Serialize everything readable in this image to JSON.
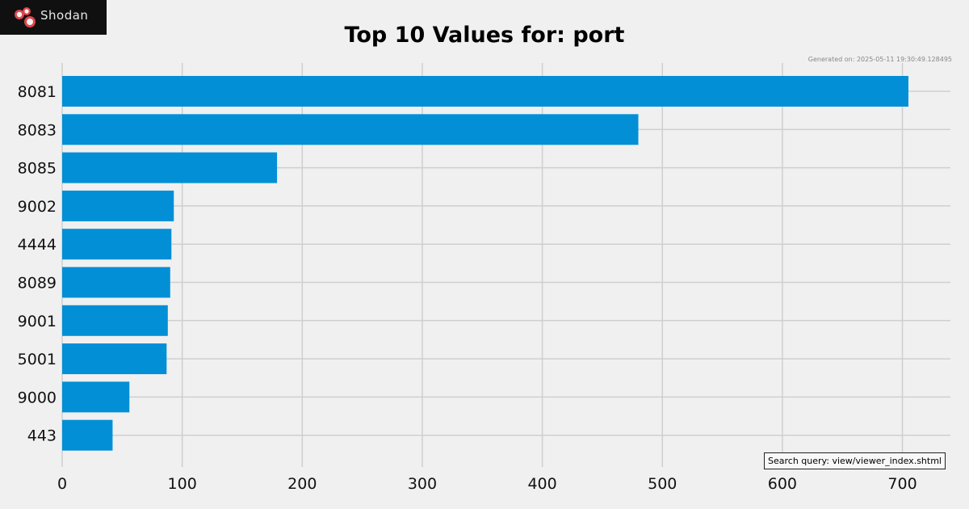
{
  "logo": {
    "text": "Shodan",
    "icon": "shodan-logo-icon"
  },
  "generated_text": "Generated on: 2025-05-11 19:30:49.128495",
  "search_query_text": "Search query: view/viewer_index.shtml",
  "colors": {
    "bar": "#038fd6",
    "background": "#f0f0f0",
    "grid": "#cfcfcf",
    "logo_bg": "#101010",
    "logo_accent": "#e0454a"
  },
  "chart_data": {
    "type": "bar",
    "orientation": "horizontal",
    "title": "Top 10 Values for: port",
    "xlabel": "",
    "ylabel": "",
    "categories": [
      "8081",
      "8083",
      "8085",
      "9002",
      "4444",
      "8089",
      "9001",
      "5001",
      "9000",
      "443"
    ],
    "values": [
      705,
      480,
      179,
      93,
      91,
      90,
      88,
      87,
      56,
      42
    ],
    "xlim": [
      0,
      740
    ],
    "xticks": [
      0,
      100,
      200,
      300,
      400,
      500,
      600,
      700
    ],
    "grid": true,
    "legend": "none"
  }
}
